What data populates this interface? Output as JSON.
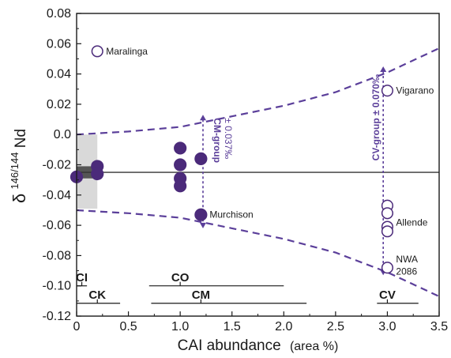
{
  "chart_data": {
    "type": "scatter",
    "xlabel_main": "CAI abundance",
    "xlabel_unit": "(area %)",
    "ylabel_prefix": "δ",
    "ylabel_sup": "146/144",
    "ylabel_suffix": "Nd",
    "xlim": [
      0,
      3.5
    ],
    "ylim": [
      -0.12,
      0.08
    ],
    "x_ticks": [
      0,
      0.5,
      1.0,
      1.5,
      2.0,
      2.5,
      3.0,
      3.5
    ],
    "x_tick_labels": [
      "0",
      "0.5",
      "1.0",
      "1.5",
      "2.0",
      "2.5",
      "3.0",
      "3.5"
    ],
    "y_ticks": [
      -0.12,
      -0.1,
      -0.08,
      -0.06,
      -0.04,
      -0.02,
      0.0,
      0.02,
      0.04,
      0.06,
      0.08
    ],
    "y_tick_labels": [
      "-0.12",
      "-0.10",
      "-0.08",
      "-0.06",
      "-0.04",
      "-0.02",
      "0.0",
      "0.02",
      "0.04",
      "0.06",
      "0.08"
    ],
    "grid": false,
    "reference_line": -0.025,
    "bounds": {
      "upper": [
        [
          0,
          0.0
        ],
        [
          0.5,
          0.002
        ],
        [
          1.0,
          0.005
        ],
        [
          1.5,
          0.012
        ],
        [
          2.0,
          0.019
        ],
        [
          2.5,
          0.028
        ],
        [
          3.0,
          0.041
        ],
        [
          3.5,
          0.057
        ]
      ],
      "lower": [
        [
          0,
          -0.05
        ],
        [
          0.5,
          -0.052
        ],
        [
          1.0,
          -0.055
        ],
        [
          1.5,
          -0.062
        ],
        [
          2.0,
          -0.069
        ],
        [
          2.5,
          -0.078
        ],
        [
          3.0,
          -0.091
        ],
        [
          3.5,
          -0.107
        ]
      ]
    },
    "shaded_band": {
      "x": [
        0,
        0.2
      ],
      "y": [
        -0.049,
        0.0
      ]
    },
    "dark_band": {
      "x": [
        0,
        0.2
      ],
      "y": [
        -0.029,
        -0.021
      ]
    },
    "series": [
      {
        "fill": "filled",
        "points": [
          {
            "x": 0.0,
            "y": -0.028
          },
          {
            "x": 0.2,
            "y": -0.021
          },
          {
            "x": 0.2,
            "y": -0.026
          },
          {
            "x": 1.0,
            "y": -0.009
          },
          {
            "x": 1.0,
            "y": -0.02
          },
          {
            "x": 1.0,
            "y": -0.029
          },
          {
            "x": 1.0,
            "y": -0.034
          },
          {
            "x": 1.2,
            "y": -0.016
          },
          {
            "x": 1.2,
            "y": -0.053
          }
        ]
      },
      {
        "fill": "open",
        "points": [
          {
            "x": 0.2,
            "y": 0.055
          },
          {
            "x": 3.0,
            "y": 0.029
          },
          {
            "x": 3.0,
            "y": -0.047
          },
          {
            "x": 3.0,
            "y": -0.052
          },
          {
            "x": 3.0,
            "y": -0.061
          },
          {
            "x": 3.0,
            "y": -0.064
          },
          {
            "x": 3.0,
            "y": -0.088
          }
        ]
      }
    ],
    "point_labels": [
      {
        "text": "Maralinga",
        "x": 0.2,
        "y": 0.055
      },
      {
        "text": "Vigarano",
        "x": 3.0,
        "y": 0.029
      },
      {
        "text": "Murchison",
        "x": 1.2,
        "y": -0.053
      },
      {
        "text": "Allende",
        "x": 3.0,
        "y": -0.058
      },
      {
        "text": "NWA",
        "x": 3.0,
        "y": -0.0825
      },
      {
        "text": "2086",
        "x": 3.0,
        "y": -0.0905
      }
    ],
    "error_bars": [
      {
        "x": 1.22,
        "y0": 0.013,
        "y1": -0.062,
        "label_line1": "CM-group",
        "label_line2": "± 0.037‰"
      },
      {
        "x": 2.96,
        "y0": 0.045,
        "y1": -0.093,
        "label": "CV-group ± 0.070‰"
      }
    ],
    "groups": [
      {
        "label": "CI",
        "label_x": 0.05,
        "label_y": -0.097,
        "range": [
          0,
          0.1
        ],
        "line_y": -0.1,
        "marker": 0.05
      },
      {
        "label": "CK",
        "label_x": 0.2,
        "label_y": -0.1085,
        "range": [
          0,
          0.42
        ],
        "line_y": -0.1115,
        "marker": 0.2
      },
      {
        "label": "CO",
        "label_x": 1.0,
        "label_y": -0.097,
        "range": [
          0.7,
          2.0
        ],
        "line_y": -0.1,
        "marker": 1.0
      },
      {
        "label": "CM",
        "label_x": 1.2,
        "label_y": -0.1085,
        "range": [
          0.72,
          2.22
        ],
        "line_y": -0.1115,
        "marker": 1.2
      },
      {
        "label": "CV",
        "label_x": 3.0,
        "label_y": -0.1085,
        "range": [
          2.9,
          3.3
        ],
        "line_y": -0.1115,
        "marker": 3.0
      }
    ],
    "colors": {
      "marker": "#4b2a7a",
      "marker_fill": "#4b2a7a",
      "bound_line": "#5b3f9a",
      "ref_line": "#333333",
      "band": "#d9d9d9",
      "dark_band": "#555555",
      "axis": "#1a1a1a"
    }
  }
}
